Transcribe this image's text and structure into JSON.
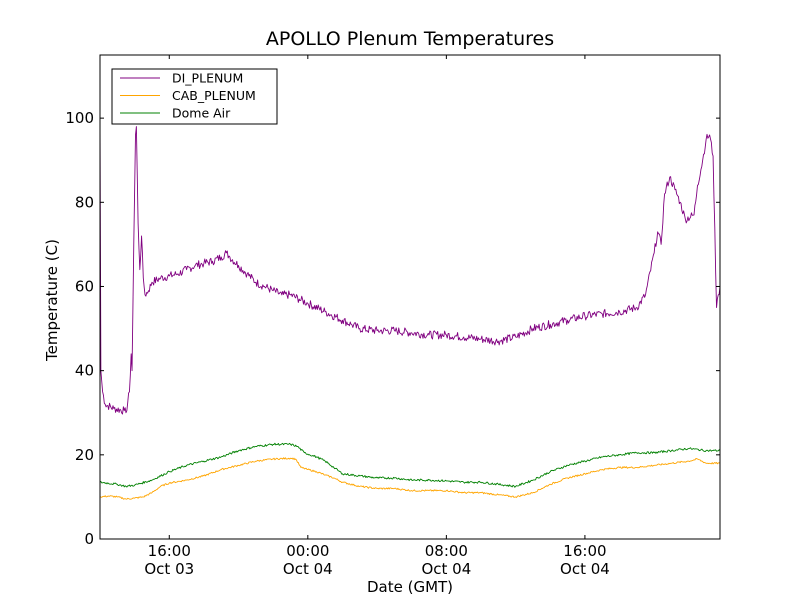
{
  "chart_data": {
    "type": "line",
    "title": "APOLLO Plenum Temperatures",
    "xlabel": "Date (GMT)",
    "ylabel": "Temperature (C)",
    "x_unit": "hours since 2014-10-03 12:00 GMT",
    "xlim": [
      0,
      35.8
    ],
    "ylim": [
      0,
      115
    ],
    "y_ticks": [
      0,
      20,
      40,
      60,
      80,
      100
    ],
    "x_ticks": [
      {
        "x": 4,
        "time": "16:00",
        "date": "Oct 03"
      },
      {
        "x": 12,
        "time": "00:00",
        "date": "Oct 04"
      },
      {
        "x": 20,
        "time": "08:00",
        "date": "Oct 04"
      },
      {
        "x": 28,
        "time": "16:00",
        "date": "Oct 04"
      }
    ],
    "legend_position": "top-left",
    "series": [
      {
        "name": "DI_PLENUM",
        "color": "#800080",
        "noise": 1.0,
        "points": [
          [
            0,
            100
          ],
          [
            0.05,
            40
          ],
          [
            0.15,
            35
          ],
          [
            0.3,
            32
          ],
          [
            0.8,
            31
          ],
          [
            1.4,
            30.5
          ],
          [
            1.5,
            30
          ],
          [
            1.7,
            35
          ],
          [
            1.8,
            44
          ],
          [
            1.85,
            40
          ],
          [
            1.95,
            70
          ],
          [
            2.05,
            96
          ],
          [
            2.1,
            98
          ],
          [
            2.2,
            75
          ],
          [
            2.3,
            64
          ],
          [
            2.4,
            72
          ],
          [
            2.5,
            62
          ],
          [
            2.6,
            58
          ],
          [
            2.8,
            59
          ],
          [
            3,
            61
          ],
          [
            3.5,
            62
          ],
          [
            4,
            62.5
          ],
          [
            4.5,
            63
          ],
          [
            5,
            64
          ],
          [
            5.5,
            65
          ],
          [
            6,
            65.5
          ],
          [
            6.5,
            66
          ],
          [
            7,
            67
          ],
          [
            7.3,
            68
          ],
          [
            7.5,
            67
          ],
          [
            8,
            65
          ],
          [
            8.5,
            63
          ],
          [
            9,
            61
          ],
          [
            9.5,
            60
          ],
          [
            10,
            59
          ],
          [
            10.5,
            58
          ],
          [
            11,
            58
          ],
          [
            11.5,
            57
          ],
          [
            12,
            56
          ],
          [
            13,
            54
          ],
          [
            14,
            52
          ],
          [
            14.5,
            51
          ],
          [
            15,
            50
          ],
          [
            16,
            49.5
          ],
          [
            17,
            49.5
          ],
          [
            18,
            49
          ],
          [
            19,
            48.5
          ],
          [
            20,
            48.5
          ],
          [
            21,
            48
          ],
          [
            22,
            47.5
          ],
          [
            23,
            47
          ],
          [
            24,
            48
          ],
          [
            25,
            50
          ],
          [
            26,
            51
          ],
          [
            27,
            52
          ],
          [
            28,
            53
          ],
          [
            29,
            53.5
          ],
          [
            30,
            54
          ],
          [
            31,
            55
          ],
          [
            31.5,
            58
          ],
          [
            32,
            68
          ],
          [
            32.2,
            73
          ],
          [
            32.4,
            70
          ],
          [
            32.6,
            82
          ],
          [
            32.9,
            86
          ],
          [
            33.2,
            83
          ],
          [
            33.5,
            80
          ],
          [
            33.8,
            76
          ],
          [
            34.3,
            77
          ],
          [
            34.5,
            84
          ],
          [
            34.8,
            90
          ],
          [
            35,
            95
          ],
          [
            35.2,
            96
          ],
          [
            35.4,
            91
          ],
          [
            35.6,
            55
          ],
          [
            35.7,
            58
          ],
          [
            35.8,
            60
          ]
        ]
      },
      {
        "name": "CAB_PLENUM",
        "color": "#FFA500",
        "noise": 0.2,
        "points": [
          [
            0,
            10
          ],
          [
            0.5,
            10.2
          ],
          [
            1,
            10
          ],
          [
            1.5,
            9.5
          ],
          [
            2,
            9.7
          ],
          [
            2.5,
            10
          ],
          [
            3,
            11
          ],
          [
            3.5,
            12.5
          ],
          [
            4,
            13.3
          ],
          [
            5,
            14
          ],
          [
            6,
            15
          ],
          [
            7,
            16.5
          ],
          [
            8,
            17.5
          ],
          [
            9,
            18.5
          ],
          [
            10,
            19
          ],
          [
            11,
            19.2
          ],
          [
            11.3,
            19
          ],
          [
            11.6,
            17
          ],
          [
            12,
            16.5
          ],
          [
            12.5,
            16
          ],
          [
            13,
            15.2
          ],
          [
            13.5,
            14.5
          ],
          [
            14,
            13.5
          ],
          [
            15,
            12.5
          ],
          [
            16,
            12
          ],
          [
            17,
            12
          ],
          [
            18,
            11.5
          ],
          [
            19,
            11.5
          ],
          [
            20,
            11.5
          ],
          [
            21,
            11
          ],
          [
            22,
            11
          ],
          [
            23,
            10.5
          ],
          [
            24,
            10
          ],
          [
            25,
            11
          ],
          [
            25.5,
            12
          ],
          [
            26,
            13
          ],
          [
            27,
            14.5
          ],
          [
            28,
            15.5
          ],
          [
            29,
            16.5
          ],
          [
            30,
            17
          ],
          [
            31,
            17
          ],
          [
            32,
            17.5
          ],
          [
            33,
            18
          ],
          [
            34,
            18.5
          ],
          [
            34.5,
            19
          ],
          [
            35,
            18
          ],
          [
            35.8,
            18
          ]
        ]
      },
      {
        "name": "Dome Air",
        "color": "#008000",
        "noise": 0.25,
        "points": [
          [
            0,
            13.5
          ],
          [
            1,
            13
          ],
          [
            1.5,
            12.5
          ],
          [
            2,
            12.8
          ],
          [
            3,
            14
          ],
          [
            4,
            16
          ],
          [
            5,
            17.5
          ],
          [
            6,
            18.5
          ],
          [
            7,
            19.5
          ],
          [
            8,
            21
          ],
          [
            9,
            22
          ],
          [
            10,
            22.5
          ],
          [
            11,
            22.5
          ],
          [
            11.4,
            22
          ],
          [
            11.8,
            20.5
          ],
          [
            12.5,
            19.5
          ],
          [
            13,
            18.5
          ],
          [
            13.5,
            17
          ],
          [
            14,
            15.5
          ],
          [
            15,
            15
          ],
          [
            16,
            14.5
          ],
          [
            17,
            14.5
          ],
          [
            18,
            14
          ],
          [
            19,
            14
          ],
          [
            20,
            13.8
          ],
          [
            21,
            13.5
          ],
          [
            22,
            13.5
          ],
          [
            23,
            13
          ],
          [
            24,
            12.5
          ],
          [
            25,
            14
          ],
          [
            26,
            16
          ],
          [
            27,
            17.5
          ],
          [
            28,
            18.5
          ],
          [
            29,
            19.5
          ],
          [
            30,
            20
          ],
          [
            31,
            20.5
          ],
          [
            32,
            20.5
          ],
          [
            33,
            21
          ],
          [
            34,
            21.5
          ],
          [
            35,
            21
          ],
          [
            35.8,
            21
          ]
        ]
      }
    ]
  }
}
